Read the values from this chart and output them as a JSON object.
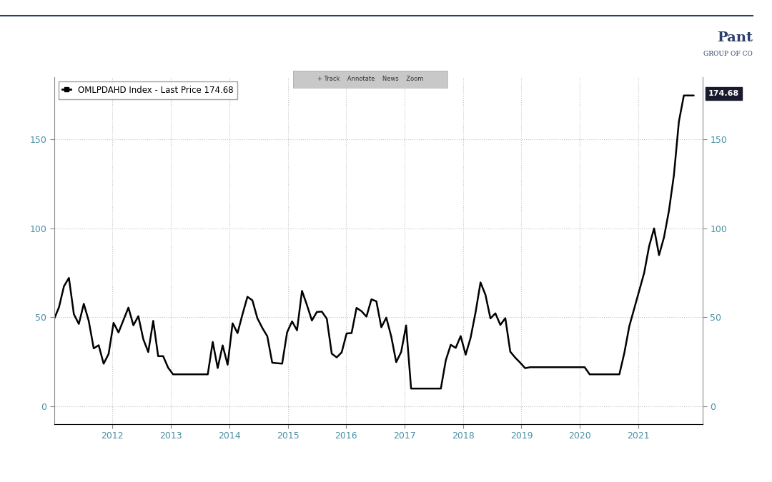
{
  "title": "OMLPDAHD Index - Last Price 174.68",
  "last_price_label": "174.68",
  "y_ticks": [
    0,
    50,
    100,
    150
  ],
  "x_ticks": [
    "2012",
    "2013",
    "2014",
    "2015",
    "2016",
    "2017",
    "2018",
    "2019",
    "2020",
    "2021"
  ],
  "x_tick_positions": [
    2012,
    2013,
    2014,
    2015,
    2016,
    2017,
    2018,
    2019,
    2020,
    2021
  ],
  "y_min": -10,
  "y_max": 185,
  "x_min": 2011.0,
  "x_max": 2022.1,
  "line_color": "#000000",
  "line_width": 1.8,
  "grid_color": "#aaaaaa",
  "background_color": "#ffffff",
  "label_color_axis": "#4a90a4",
  "watermark_line1": "Pant",
  "watermark_line2": "GROUP OF CO",
  "top_line_color": "#2c3e6b",
  "last_price_bg": "#1a1a2e",
  "toolbar_text": "+ Track    Annotate    News    Zoom"
}
